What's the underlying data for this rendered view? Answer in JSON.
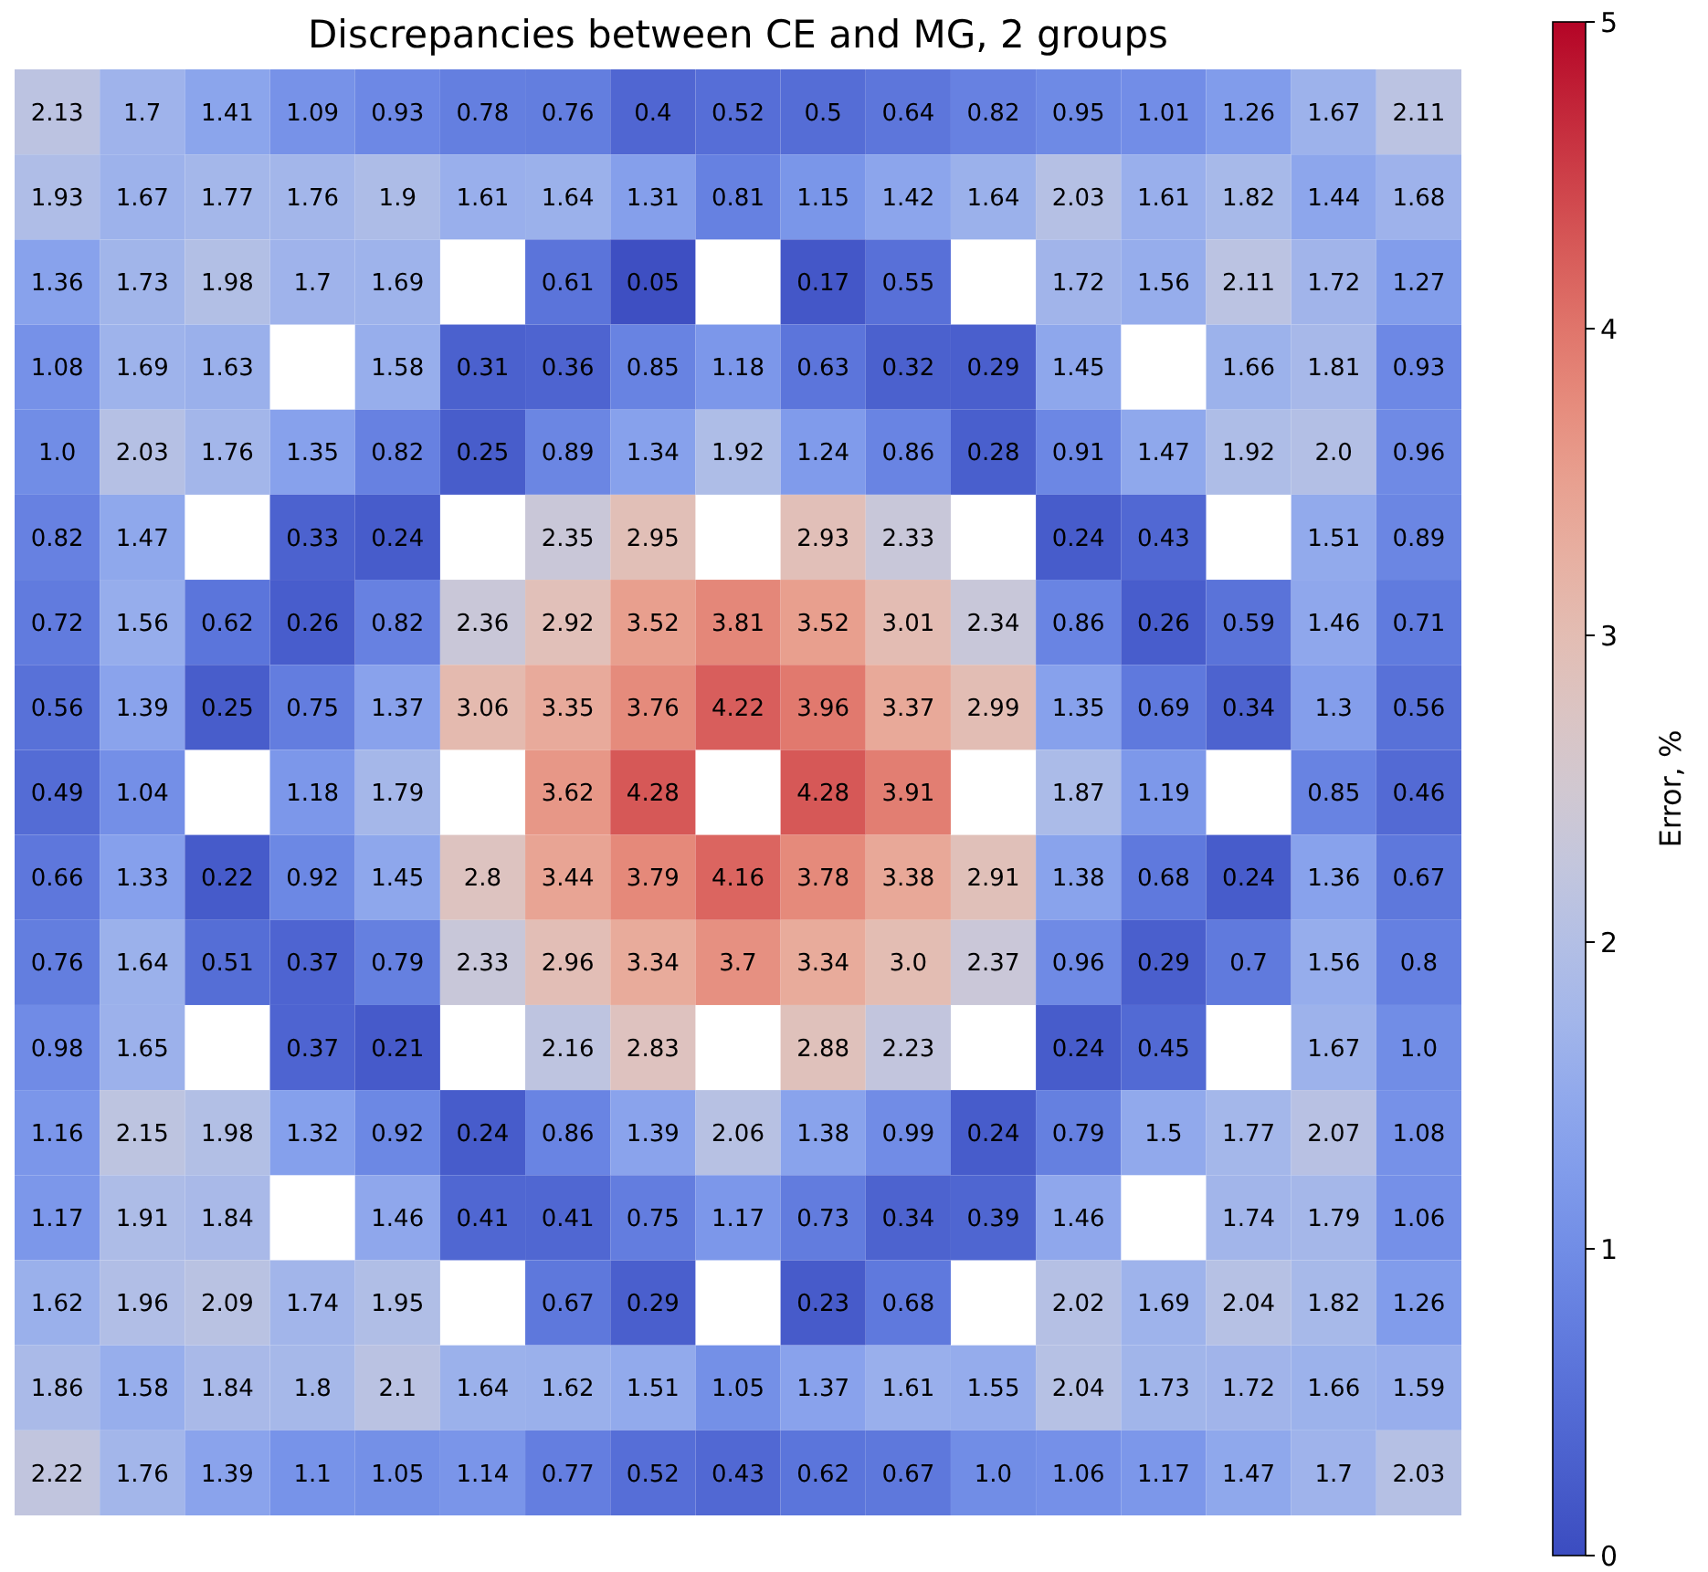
{
  "chart_data": {
    "type": "heatmap",
    "title": "Discrepancies between CE and MG, 2 groups",
    "clabel": "Error, %",
    "categories": [
      null,
      null,
      null,
      null,
      null,
      null,
      null,
      null,
      null,
      null,
      null,
      null,
      null,
      null,
      null,
      null,
      null
    ],
    "y_categories": [
      null,
      null,
      null,
      null,
      null,
      null,
      null,
      null,
      null,
      null,
      null,
      null,
      null,
      null,
      null,
      null,
      null
    ],
    "clim": [
      0,
      5
    ],
    "cticks": [
      0,
      1,
      2,
      3,
      4,
      5
    ],
    "cells": [
      [
        2.13,
        1.7,
        1.41,
        1.09,
        0.93,
        0.78,
        0.76,
        0.4,
        0.52,
        0.5,
        0.64,
        0.82,
        0.95,
        1.01,
        1.26,
        1.67,
        2.11
      ],
      [
        1.93,
        1.67,
        1.77,
        1.76,
        1.9,
        1.61,
        1.64,
        1.31,
        0.81,
        1.15,
        1.42,
        1.64,
        2.03,
        1.61,
        1.82,
        1.44,
        1.68
      ],
      [
        1.36,
        1.73,
        1.98,
        1.7,
        1.69,
        null,
        0.61,
        0.05,
        null,
        0.17,
        0.55,
        null,
        1.72,
        1.56,
        2.11,
        1.72,
        1.27
      ],
      [
        1.08,
        1.69,
        1.63,
        null,
        1.58,
        0.31,
        0.36,
        0.85,
        1.18,
        0.63,
        0.32,
        0.29,
        1.45,
        null,
        1.66,
        1.81,
        0.93
      ],
      [
        1.0,
        2.03,
        1.76,
        1.35,
        0.82,
        0.25,
        0.89,
        1.34,
        1.92,
        1.24,
        0.86,
        0.28,
        0.91,
        1.47,
        1.92,
        2.0,
        0.96
      ],
      [
        0.82,
        1.47,
        null,
        0.33,
        0.24,
        null,
        2.35,
        2.95,
        null,
        2.93,
        2.33,
        null,
        0.24,
        0.43,
        null,
        1.51,
        0.89
      ],
      [
        0.72,
        1.56,
        0.62,
        0.26,
        0.82,
        2.36,
        2.92,
        3.52,
        3.81,
        3.52,
        3.01,
        2.34,
        0.86,
        0.26,
        0.59,
        1.46,
        0.71
      ],
      [
        0.56,
        1.39,
        0.25,
        0.75,
        1.37,
        3.06,
        3.35,
        3.76,
        4.22,
        3.96,
        3.37,
        2.99,
        1.35,
        0.69,
        0.34,
        1.3,
        0.56
      ],
      [
        0.49,
        1.04,
        null,
        1.18,
        1.79,
        null,
        3.62,
        4.28,
        null,
        4.28,
        3.91,
        null,
        1.87,
        1.19,
        null,
        0.85,
        0.46
      ],
      [
        0.66,
        1.33,
        0.22,
        0.92,
        1.45,
        2.8,
        3.44,
        3.79,
        4.16,
        3.78,
        3.38,
        2.91,
        1.38,
        0.68,
        0.24,
        1.36,
        0.67
      ],
      [
        0.76,
        1.64,
        0.51,
        0.37,
        0.79,
        2.33,
        2.96,
        3.34,
        3.7,
        3.34,
        3.0,
        2.37,
        0.96,
        0.29,
        0.7,
        1.56,
        0.8
      ],
      [
        0.98,
        1.65,
        null,
        0.37,
        0.21,
        null,
        2.16,
        2.83,
        null,
        2.88,
        2.23,
        null,
        0.24,
        0.45,
        null,
        1.67,
        1.0
      ],
      [
        1.16,
        2.15,
        1.98,
        1.32,
        0.92,
        0.24,
        0.86,
        1.39,
        2.06,
        1.38,
        0.99,
        0.24,
        0.79,
        1.5,
        1.77,
        2.07,
        1.08
      ],
      [
        1.17,
        1.91,
        1.84,
        null,
        1.46,
        0.41,
        0.41,
        0.75,
        1.17,
        0.73,
        0.34,
        0.39,
        1.46,
        null,
        1.74,
        1.79,
        1.06
      ],
      [
        1.62,
        1.96,
        2.09,
        1.74,
        1.95,
        null,
        0.67,
        0.29,
        null,
        0.23,
        0.68,
        null,
        2.02,
        1.69,
        2.04,
        1.82,
        1.26
      ],
      [
        1.86,
        1.58,
        1.84,
        1.8,
        2.1,
        1.64,
        1.62,
        1.51,
        1.05,
        1.37,
        1.61,
        1.55,
        2.04,
        1.73,
        1.72,
        1.66,
        1.59
      ],
      [
        2.22,
        1.76,
        1.39,
        1.1,
        1.05,
        1.14,
        0.77,
        0.52,
        0.43,
        0.62,
        0.67,
        1.0,
        1.06,
        1.17,
        1.47,
        1.7,
        2.03
      ]
    ],
    "cell_labels": [
      [
        "2.13",
        "1.7",
        "1.41",
        "1.09",
        "0.93",
        "0.78",
        "0.76",
        "0.4",
        "0.52",
        "0.5",
        "0.64",
        "0.82",
        "0.95",
        "1.01",
        "1.26",
        "1.67",
        "2.11"
      ],
      [
        "1.93",
        "1.67",
        "1.77",
        "1.76",
        "1.9",
        "1.61",
        "1.64",
        "1.31",
        "0.81",
        "1.15",
        "1.42",
        "1.64",
        "2.03",
        "1.61",
        "1.82",
        "1.44",
        "1.68"
      ],
      [
        "1.36",
        "1.73",
        "1.98",
        "1.7",
        "1.69",
        null,
        "0.61",
        "0.05",
        null,
        "0.17",
        "0.55",
        null,
        "1.72",
        "1.56",
        "2.11",
        "1.72",
        "1.27"
      ],
      [
        "1.08",
        "1.69",
        "1.63",
        null,
        "1.58",
        "0.31",
        "0.36",
        "0.85",
        "1.18",
        "0.63",
        "0.32",
        "0.29",
        "1.45",
        null,
        "1.66",
        "1.81",
        "0.93"
      ],
      [
        "1.0",
        "2.03",
        "1.76",
        "1.35",
        "0.82",
        "0.25",
        "0.89",
        "1.34",
        "1.92",
        "1.24",
        "0.86",
        "0.28",
        "0.91",
        "1.47",
        "1.92",
        "2.0",
        "0.96"
      ],
      [
        "0.82",
        "1.47",
        null,
        "0.33",
        "0.24",
        null,
        "2.35",
        "2.95",
        null,
        "2.93",
        "2.33",
        null,
        "0.24",
        "0.43",
        null,
        "1.51",
        "0.89"
      ],
      [
        "0.72",
        "1.56",
        "0.62",
        "0.26",
        "0.82",
        "2.36",
        "2.92",
        "3.52",
        "3.81",
        "3.52",
        "3.01",
        "2.34",
        "0.86",
        "0.26",
        "0.59",
        "1.46",
        "0.71"
      ],
      [
        "0.56",
        "1.39",
        "0.25",
        "0.75",
        "1.37",
        "3.06",
        "3.35",
        "3.76",
        "4.22",
        "3.96",
        "3.37",
        "2.99",
        "1.35",
        "0.69",
        "0.34",
        "1.3",
        "0.56"
      ],
      [
        "0.49",
        "1.04",
        null,
        "1.18",
        "1.79",
        null,
        "3.62",
        "4.28",
        null,
        "4.28",
        "3.91",
        null,
        "1.87",
        "1.19",
        null,
        "0.85",
        "0.46"
      ],
      [
        "0.66",
        "1.33",
        "0.22",
        "0.92",
        "1.45",
        "2.8",
        "3.44",
        "3.79",
        "4.16",
        "3.78",
        "3.38",
        "2.91",
        "1.38",
        "0.68",
        "0.24",
        "1.36",
        "0.67"
      ],
      [
        "0.76",
        "1.64",
        "0.51",
        "0.37",
        "0.79",
        "2.33",
        "2.96",
        "3.34",
        "3.7",
        "3.34",
        "3.0",
        "2.37",
        "0.96",
        "0.29",
        "0.7",
        "1.56",
        "0.8"
      ],
      [
        "0.98",
        "1.65",
        null,
        "0.37",
        "0.21",
        null,
        "2.16",
        "2.83",
        null,
        "2.88",
        "2.23",
        null,
        "0.24",
        "0.45",
        null,
        "1.67",
        "1.0"
      ],
      [
        "1.16",
        "2.15",
        "1.98",
        "1.32",
        "0.92",
        "0.24",
        "0.86",
        "1.39",
        "2.06",
        "1.38",
        "0.99",
        "0.24",
        "0.79",
        "1.5",
        "1.77",
        "2.07",
        "1.08"
      ],
      [
        "1.17",
        "1.91",
        "1.84",
        null,
        "1.46",
        "0.41",
        "0.41",
        "0.75",
        "1.17",
        "0.73",
        "0.34",
        "0.39",
        "1.46",
        null,
        "1.74",
        "1.79",
        "1.06"
      ],
      [
        "1.62",
        "1.96",
        "2.09",
        "1.74",
        "1.95",
        null,
        "0.67",
        "0.29",
        null,
        "0.23",
        "0.68",
        null,
        "2.02",
        "1.69",
        "2.04",
        "1.82",
        "1.26"
      ],
      [
        "1.86",
        "1.58",
        "1.84",
        "1.8",
        "2.1",
        "1.64",
        "1.62",
        "1.51",
        "1.05",
        "1.37",
        "1.61",
        "1.55",
        "2.04",
        "1.73",
        "1.72",
        "1.66",
        "1.59"
      ],
      [
        "2.22",
        "1.76",
        "1.39",
        "1.1",
        "1.05",
        "1.14",
        "0.77",
        "0.52",
        "0.43",
        "0.62",
        "0.67",
        "1.0",
        "1.06",
        "1.17",
        "1.47",
        "1.7",
        "2.03"
      ]
    ]
  }
}
